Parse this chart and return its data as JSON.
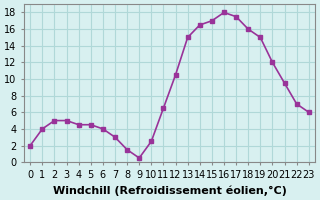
{
  "x": [
    0,
    1,
    2,
    3,
    4,
    5,
    6,
    7,
    8,
    9,
    10,
    11,
    12,
    13,
    14,
    15,
    16,
    17,
    18,
    19,
    20,
    21,
    22,
    23
  ],
  "y": [
    2,
    4,
    5,
    5,
    4.5,
    4.5,
    4,
    3,
    1.5,
    0.5,
    2.5,
    6.5,
    10.5,
    15,
    16.5,
    17,
    18,
    17.5,
    16,
    15,
    12,
    9.5,
    7,
    6
  ],
  "line_color": "#993399",
  "marker": "s",
  "marker_size": 3,
  "background_color": "#d8f0f0",
  "grid_color": "#b0d8d8",
  "xlabel": "Windchill (Refroidissement éolien,°C)",
  "xlabel_fontsize": 8,
  "ylabel_ticks": [
    0,
    2,
    4,
    6,
    8,
    10,
    12,
    14,
    16,
    18
  ],
  "ylim": [
    0,
    19
  ],
  "xlim": [
    -0.5,
    23.5
  ],
  "tick_fontsize": 7,
  "line_width": 1.2
}
